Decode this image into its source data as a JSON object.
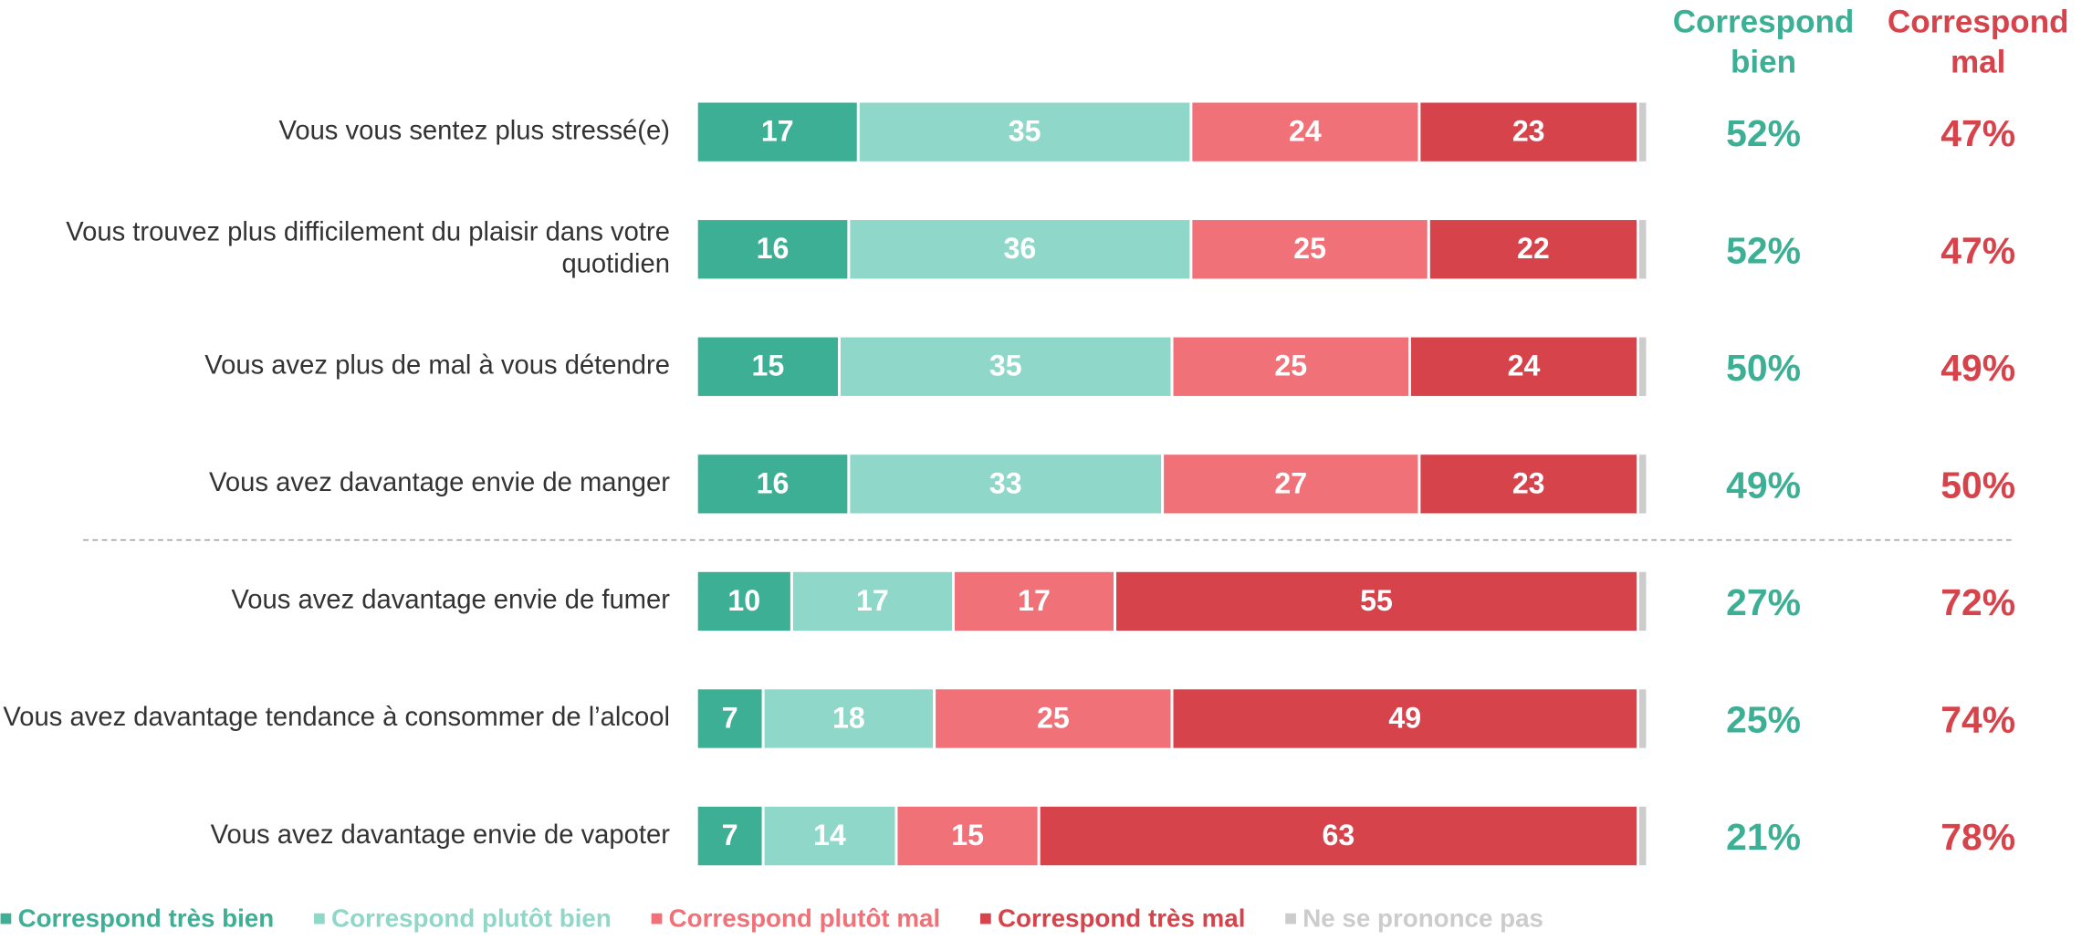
{
  "chart_data": {
    "type": "stacked-bar-horizontal",
    "categories": [
      "Vous vous sentez plus stressé(e)",
      "Vous trouvez plus difficilement du plaisir dans votre quotidien",
      "Vous avez plus de mal à vous détendre",
      "Vous avez davantage envie de manger",
      "Vous avez davantage envie de fumer",
      "Vous avez davantage tendance à consommer de l’alcool",
      "Vous avez davantage envie de vapoter"
    ],
    "xlim": [
      0,
      100
    ],
    "series": [
      {
        "name": "Correspond très bien",
        "color": "#3daf94",
        "values": [
          17,
          16,
          15,
          16,
          10,
          7,
          7
        ]
      },
      {
        "name": "Correspond plutôt bien",
        "color": "#8fd8c9",
        "values": [
          35,
          36,
          35,
          33,
          17,
          18,
          14
        ]
      },
      {
        "name": "Correspond plutôt mal",
        "color": "#f07177",
        "values": [
          24,
          25,
          25,
          27,
          17,
          25,
          15
        ]
      },
      {
        "name": "Correspond très mal",
        "color": "#d6434b",
        "values": [
          23,
          22,
          24,
          23,
          55,
          49,
          63
        ]
      },
      {
        "name": "Ne se prononce pas",
        "color": "#cccccc",
        "values": [
          1,
          1,
          1,
          1,
          1,
          1,
          1
        ],
        "value_labels": [
          null,
          null,
          null,
          null,
          null,
          null,
          null
        ]
      }
    ],
    "totals": [
      {
        "header": [
          "Correspond",
          "bien"
        ],
        "color": "#3daf94",
        "values": [
          52,
          52,
          50,
          49,
          27,
          25,
          21
        ],
        "value_labels": [
          "52%",
          "52%",
          "50%",
          "49%",
          "27%",
          "25%",
          "21%"
        ]
      },
      {
        "header": [
          "Correspond",
          "mal"
        ],
        "color": "#d6434b",
        "values": [
          47,
          47,
          49,
          50,
          72,
          74,
          78
        ],
        "value_labels": [
          "47%",
          "47%",
          "49%",
          "50%",
          "72%",
          "74%",
          "78%"
        ]
      }
    ]
  }
}
